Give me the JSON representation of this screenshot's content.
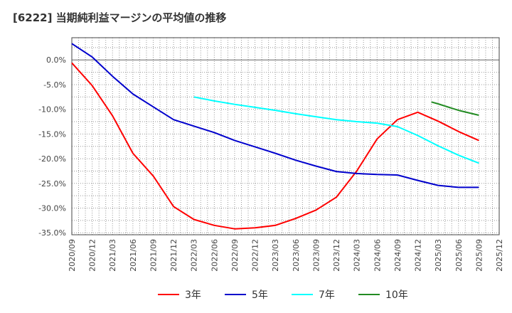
{
  "chart_data": {
    "type": "line",
    "title": "[6222]  当期純利益マージンの平均値の推移",
    "xlabel": "",
    "ylabel": "",
    "ylim": [
      -35.4,
      4.5
    ],
    "grid": true,
    "legend_position": "bottom",
    "x_tick_labels": [
      "2020/09",
      "2020/12",
      "2021/03",
      "2021/06",
      "2021/09",
      "2021/12",
      "2022/03",
      "2022/06",
      "2022/09",
      "2022/12",
      "2023/03",
      "2023/06",
      "2023/09",
      "2023/12",
      "2024/03",
      "2024/06",
      "2024/09",
      "2024/12",
      "2025/03",
      "2025/06",
      "2025/09",
      "2025/12"
    ],
    "y_ticks": [
      0,
      -5,
      -10,
      -15,
      -20,
      -25,
      -30,
      -35
    ],
    "y_tick_labels": [
      "0.0%",
      "-5.0%",
      "-10.0%",
      "-15.0%",
      "-20.0%",
      "-25.0%",
      "-30.0%",
      "-35.0%"
    ],
    "series": [
      {
        "name": "3年",
        "color": "#ff0000",
        "x": [
          "2020/09",
          "2020/12",
          "2021/03",
          "2021/06",
          "2021/09",
          "2021/12",
          "2022/03",
          "2022/06",
          "2022/09",
          "2022/12",
          "2023/03",
          "2023/06",
          "2023/09",
          "2023/12",
          "2024/03",
          "2024/06",
          "2024/09",
          "2024/12",
          "2025/03",
          "2025/06",
          "2025/09"
        ],
        "values": [
          -0.6,
          -5.2,
          -11.3,
          -18.9,
          -23.5,
          -29.7,
          -32.3,
          -33.5,
          -34.2,
          -34.0,
          -33.5,
          -32.1,
          -30.4,
          -27.8,
          -22.5,
          -16.0,
          -12.1,
          -10.6,
          -12.4,
          -14.5,
          -16.3
        ]
      },
      {
        "name": "5年",
        "color": "#0000cc",
        "x": [
          "2020/09",
          "2020/12",
          "2021/03",
          "2021/06",
          "2021/09",
          "2021/12",
          "2022/03",
          "2022/06",
          "2022/09",
          "2022/12",
          "2023/03",
          "2023/06",
          "2023/09",
          "2023/12",
          "2024/03",
          "2024/06",
          "2024/09",
          "2024/12",
          "2025/03",
          "2025/06",
          "2025/09"
        ],
        "values": [
          3.3,
          0.6,
          -3.3,
          -6.9,
          -9.5,
          -12.1,
          -13.4,
          -14.7,
          -16.3,
          -17.6,
          -18.9,
          -20.3,
          -21.5,
          -22.6,
          -23.0,
          -23.2,
          -23.3,
          -24.4,
          -25.4,
          -25.8,
          -25.8
        ]
      },
      {
        "name": "7年",
        "color": "#00ffff",
        "x": [
          "2022/03",
          "2022/06",
          "2022/09",
          "2022/12",
          "2023/03",
          "2023/06",
          "2023/09",
          "2023/12",
          "2024/03",
          "2024/06",
          "2024/09",
          "2024/12",
          "2025/03",
          "2025/06",
          "2025/09"
        ],
        "values": [
          -7.5,
          -8.3,
          -9.0,
          -9.6,
          -10.2,
          -10.9,
          -11.5,
          -12.1,
          -12.5,
          -12.8,
          -13.5,
          -15.3,
          -17.4,
          -19.3,
          -20.9
        ]
      },
      {
        "name": "10年",
        "color": "#228b22",
        "x": [
          "2025/02",
          "2025/03",
          "2025/06",
          "2025/09"
        ],
        "values": [
          -8.5,
          -8.9,
          -10.2,
          -11.2
        ]
      }
    ]
  }
}
